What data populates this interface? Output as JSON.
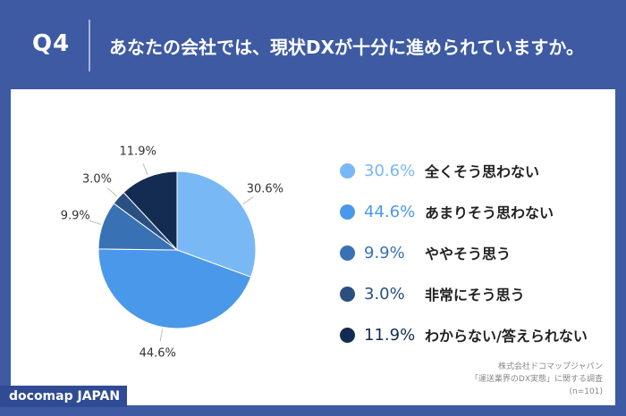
{
  "header": {
    "q_label": "Q4",
    "title": "あなたの会社では、現状DXが十分に進められていますか。"
  },
  "chart_data": {
    "type": "pie",
    "title": "あなたの会社では、現状DXが十分に進められていますか。",
    "slices": [
      {
        "label": "全くそう思わない",
        "value": 30.6,
        "display": "30.6%",
        "color": "#78b8f5"
      },
      {
        "label": "あまりそう思わない",
        "value": 44.6,
        "display": "44.6%",
        "color": "#4a98ea"
      },
      {
        "label": "ややそう思う",
        "value": 9.9,
        "display": "9.9%",
        "color": "#3872b5"
      },
      {
        "label": "非常にそう思う",
        "value": 3.0,
        "display": "3.0%",
        "color": "#2a4f80"
      },
      {
        "label": "わからない/答えられない",
        "value": 11.9,
        "display": "11.9%",
        "color": "#152c52"
      }
    ],
    "legend_position": "right"
  },
  "source": {
    "line1": "株式会社ドコマップジャパン",
    "line2": "「運送業界のDX実態」に関する調査",
    "line3": "(n=101)"
  },
  "brand": "docomap JAPAN",
  "colors": {
    "background": "#3d5aa3",
    "panel": "#ffffff"
  }
}
